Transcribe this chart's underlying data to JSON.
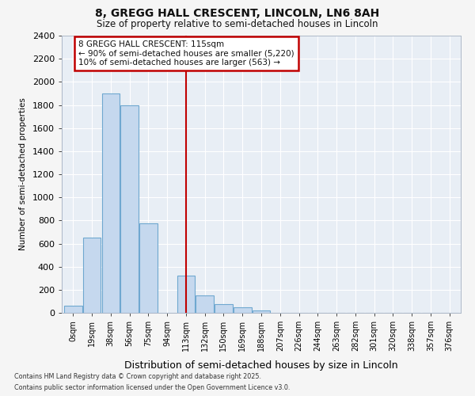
{
  "title1": "8, GREGG HALL CRESCENT, LINCOLN, LN6 8AH",
  "title2": "Size of property relative to semi-detached houses in Lincoln",
  "xlabel": "Distribution of semi-detached houses by size in Lincoln",
  "ylabel": "Number of semi-detached properties",
  "bin_labels": [
    "0sqm",
    "19sqm",
    "38sqm",
    "56sqm",
    "75sqm",
    "94sqm",
    "113sqm",
    "132sqm",
    "150sqm",
    "169sqm",
    "188sqm",
    "207sqm",
    "226sqm",
    "244sqm",
    "263sqm",
    "282sqm",
    "301sqm",
    "320sqm",
    "338sqm",
    "357sqm",
    "376sqm"
  ],
  "bar_values": [
    60,
    650,
    1900,
    1800,
    775,
    0,
    320,
    150,
    75,
    45,
    20,
    0,
    0,
    0,
    0,
    0,
    0,
    0,
    0,
    0,
    0
  ],
  "bar_color": "#c5d8ee",
  "bar_edge_color": "#6fa8d0",
  "vline_x_index": 6,
  "vline_color": "#c00000",
  "annotation_text": "8 GREGG HALL CRESCENT: 115sqm\n← 90% of semi-detached houses are smaller (5,220)\n10% of semi-detached houses are larger (563) →",
  "annotation_box_edgecolor": "#c00000",
  "ylim_max": 2400,
  "yticks": [
    0,
    200,
    400,
    600,
    800,
    1000,
    1200,
    1400,
    1600,
    1800,
    2000,
    2200,
    2400
  ],
  "fig_bg_color": "#f5f5f5",
  "plot_bg_color": "#e8eef5",
  "grid_color": "#ffffff",
  "footnote1": "Contains HM Land Registry data © Crown copyright and database right 2025.",
  "footnote2": "Contains public sector information licensed under the Open Government Licence v3.0."
}
